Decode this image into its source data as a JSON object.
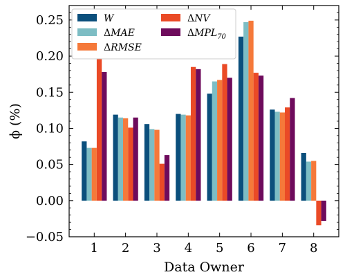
{
  "chart_data": {
    "type": "bar",
    "xlabel": "Data Owner",
    "ylabel": "ϕ (%)",
    "categories": [
      "1",
      "2",
      "3",
      "4",
      "5",
      "6",
      "7",
      "8"
    ],
    "ylim": [
      -0.05,
      0.27
    ],
    "yticks": [
      "−0.05",
      "0.00",
      "0.05",
      "0.10",
      "0.15",
      "0.20",
      "0.25"
    ],
    "ytick_values": [
      -0.05,
      0.0,
      0.05,
      0.1,
      0.15,
      0.2,
      0.25
    ],
    "grid": false,
    "legend_position": "top-left",
    "series": [
      {
        "name": "W",
        "legend_label": "W",
        "color": "#0b4f7c",
        "values": [
          0.082,
          0.119,
          0.106,
          0.12,
          0.148,
          0.227,
          0.126,
          0.066
        ]
      },
      {
        "name": "ΔMAE",
        "legend_label": "MAE",
        "color": "#7dbdc4",
        "values": [
          0.073,
          0.115,
          0.099,
          0.119,
          0.165,
          0.247,
          0.123,
          0.054
        ]
      },
      {
        "name": "ΔRMSE",
        "legend_label": "RMSE",
        "color": "#f5793a",
        "values": [
          0.073,
          0.114,
          0.098,
          0.118,
          0.167,
          0.249,
          0.122,
          0.055
        ]
      },
      {
        "name": "ΔNV",
        "legend_label": "NV",
        "color": "#ea4a26",
        "values": [
          0.197,
          0.101,
          0.051,
          0.185,
          0.189,
          0.177,
          0.129,
          -0.034
        ]
      },
      {
        "name": "ΔMPL70",
        "legend_label": "MPL",
        "legend_sub": "70",
        "color": "#6e0b5c",
        "values": [
          0.178,
          0.115,
          0.063,
          0.182,
          0.17,
          0.173,
          0.142,
          -0.028
        ]
      }
    ]
  }
}
